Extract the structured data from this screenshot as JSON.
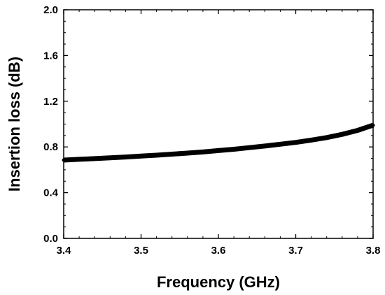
{
  "chart_data": {
    "type": "line",
    "title": "",
    "xlabel": "Frequency (GHz)",
    "ylabel": "Insertion loss (dB)",
    "xlim": [
      3.4,
      3.8
    ],
    "ylim": [
      0.0,
      2.0
    ],
    "xticks": [
      3.4,
      3.5,
      3.6,
      3.7,
      3.8
    ],
    "xtick_labels": [
      "3.4",
      "3.5",
      "3.6",
      "3.7",
      "3.8"
    ],
    "yticks": [
      0.0,
      0.4,
      0.8,
      1.2,
      1.6,
      2.0
    ],
    "ytick_labels": [
      "0.0",
      "0.4",
      "0.8",
      "1.2",
      "1.6",
      "2.0"
    ],
    "grid": false,
    "legend": "none",
    "series": [
      {
        "color": "#000000",
        "x": [
          3.4,
          3.42,
          3.44,
          3.46,
          3.48,
          3.5,
          3.52,
          3.54,
          3.56,
          3.58,
          3.6,
          3.62,
          3.64,
          3.66,
          3.68,
          3.7,
          3.72,
          3.74,
          3.76,
          3.78,
          3.8
        ],
        "y": [
          0.685,
          0.692,
          0.698,
          0.705,
          0.712,
          0.72,
          0.728,
          0.737,
          0.746,
          0.756,
          0.768,
          0.78,
          0.794,
          0.808,
          0.824,
          0.84,
          0.86,
          0.882,
          0.91,
          0.945,
          0.99
        ]
      }
    ]
  }
}
